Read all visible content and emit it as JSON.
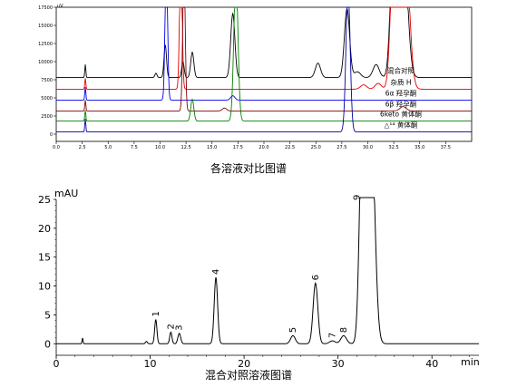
{
  "chart_data": [
    {
      "type": "line",
      "title": "",
      "caption": "各溶液对比图谱",
      "y_unit": "uV",
      "xlim": [
        0,
        40
      ],
      "ylim": [
        -1000,
        17500
      ],
      "x_ticks": [
        "0.0",
        "2.5",
        "5.0",
        "7.5",
        "10.0",
        "12.5",
        "15.0",
        "17.5",
        "20.0",
        "22.5",
        "25.0",
        "27.5",
        "30.0",
        "32.5",
        "35.0",
        "37.5"
      ],
      "y_ticks": [
        "17500",
        "15000",
        "12500",
        "10000",
        "7500",
        "5000",
        "2500",
        "0"
      ],
      "legend_placement": "right",
      "series": [
        {
          "name": "混合对照",
          "color": "#000000",
          "baseline": 7800,
          "peaks": [
            [
              2.8,
              1800,
              0.05
            ],
            [
              9.6,
              600,
              0.1
            ],
            [
              10.5,
              4500,
              0.12
            ],
            [
              12.2,
              2200,
              0.12
            ],
            [
              13.1,
              3500,
              0.15
            ],
            [
              17.0,
              8800,
              0.2
            ],
            [
              25.2,
              2000,
              0.25
            ],
            [
              28.0,
              9500,
              0.25
            ],
            [
              29.0,
              800,
              0.3
            ],
            [
              30.8,
              1800,
              0.3
            ],
            [
              32.5,
              20000,
              0.3
            ],
            [
              33.4,
              20000,
              0.4
            ]
          ]
        },
        {
          "name": "杂质 H",
          "color": "#e00000",
          "baseline": 6200,
          "peaks": [
            [
              2.8,
              1500,
              0.05
            ],
            [
              12.0,
              20000,
              0.12
            ],
            [
              29.6,
              600,
              0.3
            ],
            [
              31.0,
              800,
              0.3
            ],
            [
              32.5,
              20000,
              0.3
            ],
            [
              33.6,
              20000,
              0.4
            ]
          ]
        },
        {
          "name": "6α 羟孕酮",
          "color": "#0000e0",
          "baseline": 4700,
          "peaks": [
            [
              2.8,
              1800,
              0.05
            ],
            [
              10.6,
              20000,
              0.12
            ],
            [
              17.0,
              600,
              0.2
            ]
          ]
        },
        {
          "name": "6β 羟孕酮",
          "color": "#800000",
          "baseline": 3200,
          "peaks": [
            [
              2.8,
              1500,
              0.05
            ],
            [
              12.3,
              20000,
              0.12
            ],
            [
              16.2,
              400,
              0.2
            ],
            [
              33.4,
              600,
              0.3
            ]
          ]
        },
        {
          "name": "6keto 黄体酮",
          "color": "#008000",
          "baseline": 1800,
          "peaks": [
            [
              2.8,
              1500,
              0.05
            ],
            [
              13.1,
              3000,
              0.15
            ],
            [
              17.3,
              20000,
              0.2
            ]
          ]
        },
        {
          "name": "△¹⁴ 黄体酮",
          "color": "#0000a0",
          "baseline": 300,
          "peaks": [
            [
              2.8,
              1800,
              0.05
            ],
            [
              28.1,
              20000,
              0.2
            ]
          ]
        }
      ]
    },
    {
      "type": "line",
      "title": "",
      "caption": "混合对照溶液图谱",
      "ylabel": "mAU",
      "xlabel": "min",
      "xlim": [
        0,
        45
      ],
      "ylim": [
        -2,
        25
      ],
      "x_ticks": [
        "0",
        "10",
        "20",
        "30",
        "40"
      ],
      "y_ticks": [
        "25",
        "20",
        "15",
        "10",
        "5",
        "0"
      ],
      "peak_labels": [
        {
          "label": "1",
          "x": 10.6
        },
        {
          "label": "2",
          "x": 12.2
        },
        {
          "label": "3",
          "x": 13.1
        },
        {
          "label": "4",
          "x": 17.0
        },
        {
          "label": "5",
          "x": 25.2
        },
        {
          "label": "6",
          "x": 27.6
        },
        {
          "label": "7",
          "x": 29.4
        },
        {
          "label": "8",
          "x": 30.6
        },
        {
          "label": "9",
          "x": 32.3
        }
      ],
      "series": [
        {
          "name": "",
          "color": "#000000",
          "baseline": 0,
          "peaks": [
            [
              2.8,
              1.0,
              0.05
            ],
            [
              9.6,
              0.4,
              0.1
            ],
            [
              10.6,
              4.2,
              0.12
            ],
            [
              12.2,
              2.0,
              0.12
            ],
            [
              13.1,
              1.8,
              0.15
            ],
            [
              17.0,
              11.5,
              0.18
            ],
            [
              25.2,
              1.4,
              0.25
            ],
            [
              27.6,
              10.5,
              0.25
            ],
            [
              29.4,
              0.5,
              0.3
            ],
            [
              30.6,
              1.4,
              0.3
            ],
            [
              32.6,
              40,
              0.3
            ],
            [
              33.5,
              40,
              0.4
            ]
          ]
        }
      ]
    }
  ]
}
